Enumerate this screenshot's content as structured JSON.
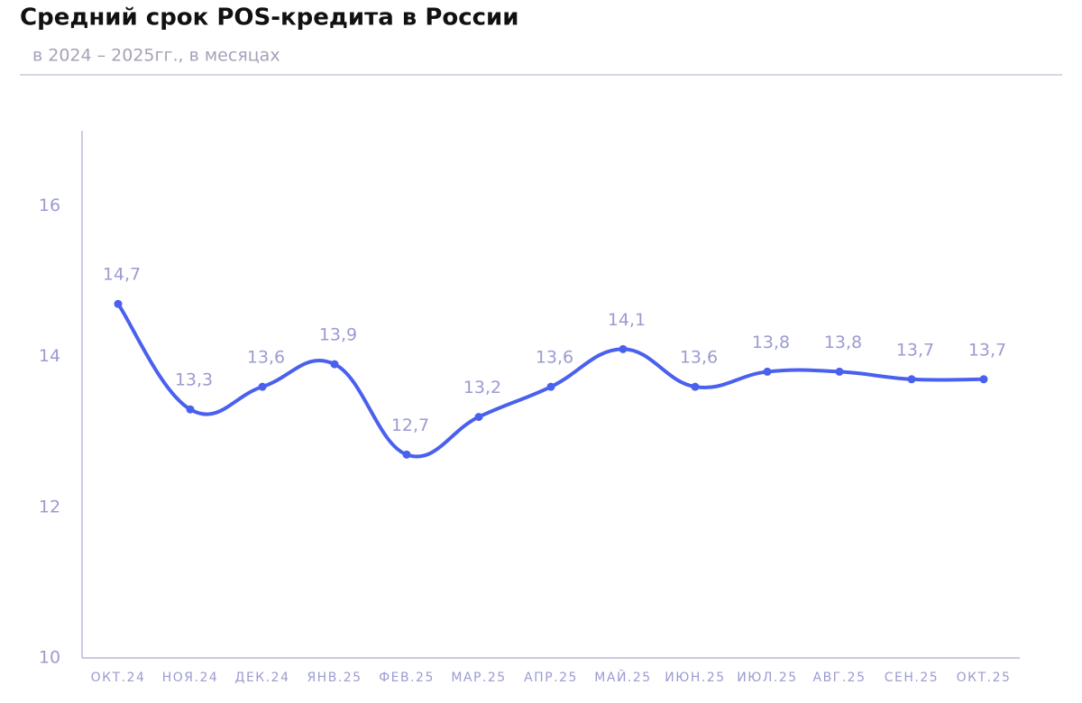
{
  "chart_data": {
    "type": "line",
    "title": "Средний срок POS-кредита в России",
    "subtitle": "в 2024 – 2025гг., в месяцах",
    "categories": [
      "ОКТ.24",
      "НОЯ.24",
      "ДЕК.24",
      "ЯНВ.25",
      "ФЕВ.25",
      "МАР.25",
      "АПР.25",
      "МАЙ.25",
      "ИЮН.25",
      "ИЮЛ.25",
      "АВГ.25",
      "СЕН.25",
      "ОКТ.25"
    ],
    "series": [
      {
        "color": "#4a60ee",
        "values": [
          14.7,
          13.3,
          13.6,
          13.9,
          12.7,
          13.2,
          13.6,
          14.1,
          13.6,
          13.8,
          13.8,
          13.7,
          13.7
        ],
        "value_labels": [
          "14,7",
          "13,3",
          "13,6",
          "13,9",
          "12,7",
          "13,2",
          "13,6",
          "14,1",
          "13,6",
          "13,8",
          "13,8",
          "13,7",
          "13,7"
        ]
      }
    ],
    "ylim": [
      10,
      17
    ],
    "yticks": [
      10,
      12,
      14,
      16
    ],
    "grid": false
  }
}
